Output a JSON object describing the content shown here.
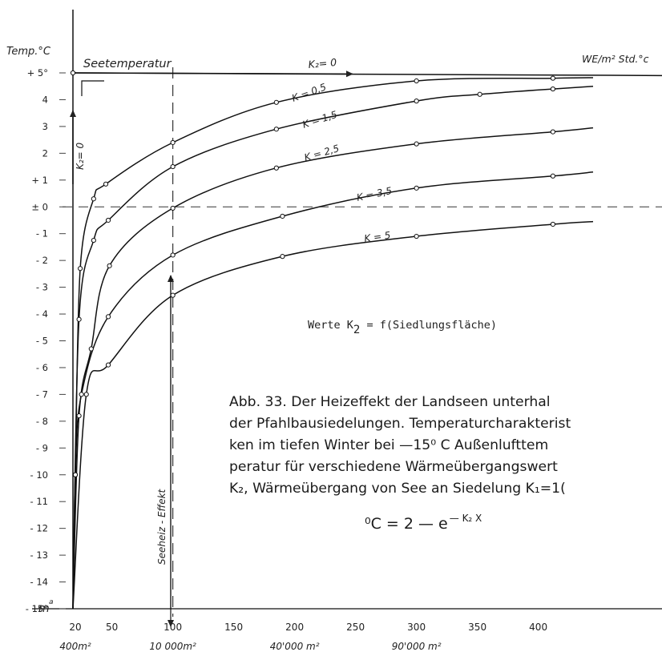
{
  "chart_data": {
    "type": "line",
    "x_axis": {
      "unit_label": "m",
      "unit_superscript": "a",
      "tick_labels": [
        {
          "x": 20,
          "text": "20"
        },
        {
          "x": 50,
          "text": "50"
        },
        {
          "x": 100,
          "text": "100"
        },
        {
          "x": 150,
          "text": "150"
        },
        {
          "x": 200,
          "text": "200"
        },
        {
          "x": 250,
          "text": "250"
        },
        {
          "x": 300,
          "text": "300"
        },
        {
          "x": 350,
          "text": "350"
        },
        {
          "x": 400,
          "text": "400"
        }
      ],
      "area_labels": [
        {
          "x": 20,
          "text": "400m²"
        },
        {
          "x": 100,
          "text": "10 000m²"
        },
        {
          "x": 200,
          "text": "40'000 m²"
        },
        {
          "x": 300,
          "text": "90'000 m²"
        }
      ],
      "range": [
        8,
        445
      ]
    },
    "y_axis": {
      "title": "Temp.°C",
      "tick_labels": [
        {
          "y": 5,
          "text": "+ 5°"
        },
        {
          "y": 4,
          "text": "4"
        },
        {
          "y": 3,
          "text": "3"
        },
        {
          "y": 2,
          "text": "2"
        },
        {
          "y": 1,
          "text": "+ 1"
        },
        {
          "y": 0,
          "text": "± 0"
        },
        {
          "y": -1,
          "text": "- 1"
        },
        {
          "y": -2,
          "text": "- 2"
        },
        {
          "y": -3,
          "text": "- 3"
        },
        {
          "y": -4,
          "text": "- 4"
        },
        {
          "y": -5,
          "text": "- 5"
        },
        {
          "y": -6,
          "text": "- 6"
        },
        {
          "y": -7,
          "text": "- 7"
        },
        {
          "y": -8,
          "text": "- 8"
        },
        {
          "y": -9,
          "text": "- 9"
        },
        {
          "y": -10,
          "text": "- 10"
        },
        {
          "y": -11,
          "text": "- 11"
        },
        {
          "y": -12,
          "text": "- 12"
        },
        {
          "y": -13,
          "text": "- 13"
        },
        {
          "y": -14,
          "text": "- 14"
        },
        {
          "y": -15,
          "text": "- 15°"
        }
      ],
      "range": [
        -15.3,
        7.6
      ]
    },
    "right_unit_label": "WE/m² Std.°c",
    "series": [
      {
        "name": "K₂ = 0",
        "label": "K₂= 0",
        "points": [
          [
            18,
            5
          ],
          [
            445,
            4.9
          ]
        ]
      },
      {
        "name": "K = 0,5",
        "label": "K = 0,5",
        "points": [
          [
            18,
            -15
          ],
          [
            20,
            -10
          ],
          [
            24,
            -2.3
          ],
          [
            35,
            0.3
          ],
          [
            45,
            0.85
          ],
          [
            100,
            2.4
          ],
          [
            185,
            3.9
          ],
          [
            300,
            4.7
          ],
          [
            412,
            4.8
          ],
          [
            445,
            4.82
          ]
        ]
      },
      {
        "name": "K = 1,5",
        "label": "K = 1,5",
        "points": [
          [
            18,
            -15
          ],
          [
            23,
            -4.2
          ],
          [
            35,
            -1.25
          ],
          [
            47,
            -0.5
          ],
          [
            100,
            1.5
          ],
          [
            185,
            2.9
          ],
          [
            300,
            3.95
          ],
          [
            352,
            4.2
          ],
          [
            412,
            4.4
          ],
          [
            445,
            4.5
          ]
        ]
      },
      {
        "name": "K = 2,5",
        "label": "K = 2,5",
        "points": [
          [
            18,
            -15
          ],
          [
            23,
            -7.8
          ],
          [
            33,
            -5.3
          ],
          [
            48,
            -2.2
          ],
          [
            100,
            -0.05
          ],
          [
            185,
            1.45
          ],
          [
            300,
            2.35
          ],
          [
            412,
            2.8
          ],
          [
            445,
            2.95
          ]
        ]
      },
      {
        "name": "K = 3,5",
        "label": "K = 3,5",
        "points": [
          [
            18,
            -15
          ],
          [
            20,
            -10
          ],
          [
            25,
            -7.0
          ],
          [
            47,
            -4.1
          ],
          [
            100,
            -1.8
          ],
          [
            190,
            -0.35
          ],
          [
            300,
            0.7
          ],
          [
            412,
            1.15
          ],
          [
            445,
            1.3
          ]
        ]
      },
      {
        "name": "K = 5",
        "label": "K = 5",
        "points": [
          [
            18,
            -15
          ],
          [
            29,
            -7.0
          ],
          [
            47,
            -5.9
          ],
          [
            100,
            -3.3
          ],
          [
            190,
            -1.85
          ],
          [
            300,
            -1.1
          ],
          [
            412,
            -0.65
          ],
          [
            445,
            -0.55
          ]
        ]
      }
    ],
    "reference_lines": {
      "y_zero_dashed": true,
      "x_100_dashed": true
    },
    "annotations": {
      "seetemperatur": "Seetemperatur",
      "k2_vertical": "K₂= 0",
      "seeheiz": "Seeheiz - Effekt",
      "werte_prefix": "Werte K",
      "werte_sub": "2",
      "werte_suffix": " = f(Siedlungsfläche)"
    }
  },
  "caption": {
    "lines": [
      "Abb. 33. Der Heizeffekt der Landseen unterhal",
      "der Pfahlbausiedelungen. Temperaturcharakterist",
      "ken im tiefen Winter bei —15⁰ C Außenlufttem",
      "peratur für verschiedene Wärmeübergangswert",
      "K₂, Wärmeübergang von See an Siedelung K₁=1("
    ],
    "formula_main": "⁰C = 2 — e",
    "formula_exp": "— K₂ X"
  }
}
